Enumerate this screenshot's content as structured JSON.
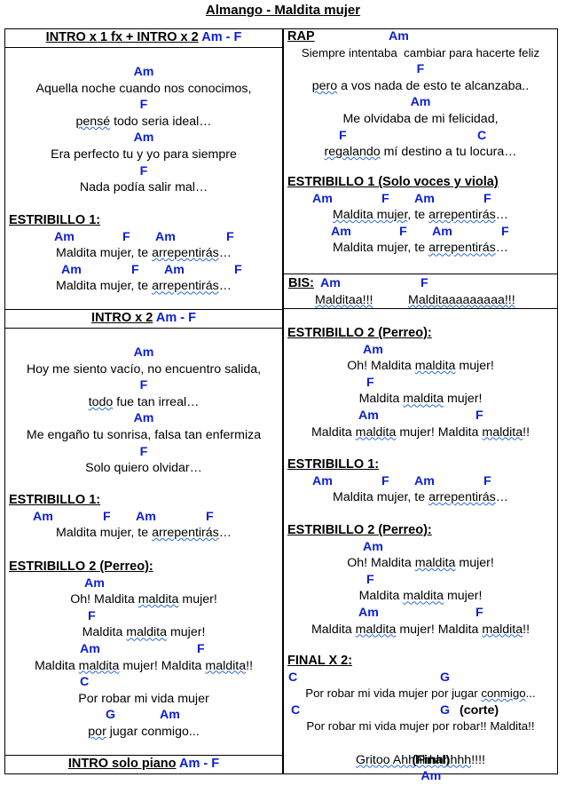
{
  "title": "Almango - Maldita mujer",
  "colors": {
    "chord": "#0b1fd6",
    "border": "#000000"
  },
  "left": {
    "intro1": {
      "label": "INTRO x 1 fx + INTRO x 2",
      "chords": "Am - F"
    },
    "verse1": [
      {
        "chord": "Am",
        "lyric": "Aquella noche cuando nos conocimos,"
      },
      {
        "chord": "F",
        "lyric": "pensé todo seria ideal…"
      },
      {
        "chord": "Am",
        "lyric": "Era perfecto tu y yo para siempre"
      },
      {
        "chord": "F",
        "lyric": "Nada podía salir mal…"
      }
    ],
    "chorus1a": {
      "label": "ESTRIBILLO 1:",
      "chords1": [
        "Am",
        "F",
        "Am",
        "F"
      ],
      "lyric1": "Maldita mujer, te arrepentirás…",
      "chords2": [
        "Am",
        "F",
        "Am",
        "F"
      ],
      "lyric2": "Maldita mujer, te arrepentirás…"
    },
    "intro2": {
      "label": "INTRO x 2",
      "chords": "Am - F"
    },
    "verse2": [
      {
        "chord": "Am",
        "lyric": "Hoy me siento vacío, no encuentro salida,"
      },
      {
        "chord": "F",
        "lyric": "todo fue tan irreal…"
      },
      {
        "chord": "Am",
        "lyric": "Me engaño tu sonrisa, falsa tan enfermiza"
      },
      {
        "chord": "F",
        "lyric": "Solo quiero olvidar…"
      }
    ],
    "chorus1b": {
      "label": "ESTRIBILLO 1:",
      "chords": [
        "Am",
        "F",
        "Am",
        "F"
      ],
      "lyric": "Maldita mujer, te arrepentirás…"
    },
    "chorus2a": {
      "label": "ESTRIBILLO 2 (Perreo):",
      "lines": [
        {
          "chord": "Am",
          "lyric": "Oh! Maldita maldita mujer!"
        },
        {
          "chord": "F",
          "lyric": "Maldita maldita mujer!"
        },
        {
          "chord": "Am",
          "chord2": "F",
          "lyric": "Maldita maldita mujer! Maldita maldita!!"
        },
        {
          "chord": "C",
          "lyric": "Por robar mi vida mujer"
        },
        {
          "chord": "G",
          "chord2": "Am",
          "lyric": "por jugar conmigo..."
        }
      ]
    },
    "intro3": {
      "label": "INTRO solo piano",
      "chords": "Am - F"
    }
  },
  "right": {
    "rap": {
      "label": "RAP",
      "lines": [
        {
          "chord": "Am",
          "lyric": "Siempre intentaba  cambiar para hacerte feliz"
        },
        {
          "chord": "F",
          "lyric": "pero a vos nada de esto te alcanzaba.."
        },
        {
          "chord": "Am",
          "lyric": "Me olvidaba de mi felicidad,"
        },
        {
          "chord": "F",
          "chord2": "C",
          "lyric": "regalando mí destino a tu locura…"
        }
      ]
    },
    "chorus1voice": {
      "label": "ESTRIBILLO 1 (Solo voces y viola)",
      "chords1": [
        "Am",
        "F",
        "Am",
        "F"
      ],
      "lyric1": "Maldita mujer, te arrepentirás…",
      "chords2": [
        "Am",
        "F",
        "Am",
        "F"
      ],
      "lyric2": "Maldita mujer, te arrepentirás…"
    },
    "bis": {
      "label": "BIS:",
      "chord1": "Am",
      "chord2": "F",
      "lyric1": "Malditaa!!!",
      "lyric2": "Malditaaaaaaaaa!!!"
    },
    "chorus2b": {
      "label": "ESTRIBILLO 2 (Perreo):",
      "lines": [
        {
          "chord": "Am",
          "lyric": "Oh! Maldita maldita mujer!"
        },
        {
          "chord": "F",
          "lyric": "Maldita maldita mujer!"
        },
        {
          "chord": "Am",
          "chord2": "F",
          "lyric": "Maldita maldita mujer! Maldita maldita!!"
        }
      ]
    },
    "chorus1c": {
      "label": "ESTRIBILLO 1:",
      "chords": [
        "Am",
        "F",
        "Am",
        "F"
      ],
      "lyric": "Maldita mujer, te arrepentirás…"
    },
    "chorus2c": {
      "label": "ESTRIBILLO 2 (Perreo):",
      "lines": [
        {
          "chord": "Am",
          "lyric": "Oh! Maldita maldita mujer!"
        },
        {
          "chord": "F",
          "lyric": "Maldita maldita mujer!"
        },
        {
          "chord": "Am",
          "chord2": "F",
          "lyric": "Maldita maldita mujer! Maldita maldita!!"
        }
      ]
    },
    "final": {
      "label": "FINAL X 2:",
      "line1_chord1": "C",
      "line1_chord2": "G",
      "line1_lyric": "Por robar mi vida mujer por jugar conmigo...",
      "line2_chord1": "C",
      "line2_chord2": "G",
      "line2_note": "(corte)",
      "line2_lyric": "Por robar mi vida mujer por robar!! Maldita!!",
      "line3_note": "(Final)",
      "line3_chord": "Am",
      "line3_lyric": "Gritoo Ahhhhhhhhhh!!!!"
    }
  }
}
